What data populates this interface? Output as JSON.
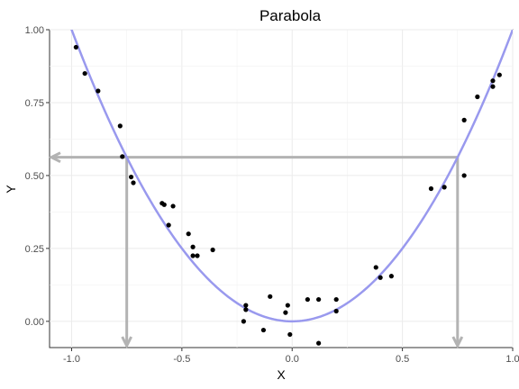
{
  "chart_data": {
    "type": "scatter",
    "title": "Parabola",
    "xlabel": "X",
    "ylabel": "Y",
    "xlim": [
      -1.1,
      1.0
    ],
    "ylim": [
      -0.09,
      1.0
    ],
    "x_ticks": [
      -1.0,
      -0.5,
      0.0,
      0.5,
      1.0
    ],
    "x_tick_labels": [
      "-1.0",
      "-0.5",
      "0.0",
      "0.5",
      "1.0"
    ],
    "y_ticks": [
      0.0,
      0.25,
      0.5,
      0.75,
      1.0
    ],
    "y_tick_labels": [
      "0.00",
      "0.25",
      "0.50",
      "0.75",
      "1.00"
    ],
    "grid": true,
    "legend": "none",
    "series": [
      {
        "type": "scatter",
        "color": "#000000",
        "points": [
          [
            -0.98,
            0.94
          ],
          [
            -0.94,
            0.85
          ],
          [
            -0.88,
            0.79
          ],
          [
            -0.78,
            0.67
          ],
          [
            -0.77,
            0.565
          ],
          [
            -0.73,
            0.495
          ],
          [
            -0.72,
            0.475
          ],
          [
            -0.59,
            0.405
          ],
          [
            -0.58,
            0.4
          ],
          [
            -0.54,
            0.395
          ],
          [
            -0.56,
            0.33
          ],
          [
            -0.47,
            0.3
          ],
          [
            -0.45,
            0.255
          ],
          [
            -0.36,
            0.245
          ],
          [
            -0.45,
            0.225
          ],
          [
            -0.43,
            0.225
          ],
          [
            -0.21,
            0.055
          ],
          [
            -0.21,
            0.04
          ],
          [
            -0.22,
            0.0
          ],
          [
            -0.13,
            -0.03
          ],
          [
            -0.1,
            0.085
          ],
          [
            -0.02,
            0.055
          ],
          [
            -0.03,
            0.03
          ],
          [
            -0.01,
            -0.045
          ],
          [
            0.07,
            0.075
          ],
          [
            0.12,
            0.075
          ],
          [
            0.2,
            0.075
          ],
          [
            0.2,
            0.035
          ],
          [
            0.12,
            -0.075
          ],
          [
            0.38,
            0.185
          ],
          [
            0.4,
            0.15
          ],
          [
            0.45,
            0.155
          ],
          [
            0.63,
            0.455
          ],
          [
            0.69,
            0.46
          ],
          [
            0.78,
            0.5
          ],
          [
            0.78,
            0.69
          ],
          [
            0.84,
            0.77
          ],
          [
            0.91,
            0.825
          ],
          [
            0.91,
            0.805
          ],
          [
            0.94,
            0.845
          ]
        ]
      },
      {
        "type": "line",
        "color": "#9999ee",
        "function": "y = x^2",
        "x_range": [
          -1.1,
          1.0
        ]
      }
    ],
    "reference_lines": {
      "color": "#b3b3b3",
      "y_level": 0.5625,
      "x_points": [
        -0.75,
        0.75
      ]
    }
  }
}
